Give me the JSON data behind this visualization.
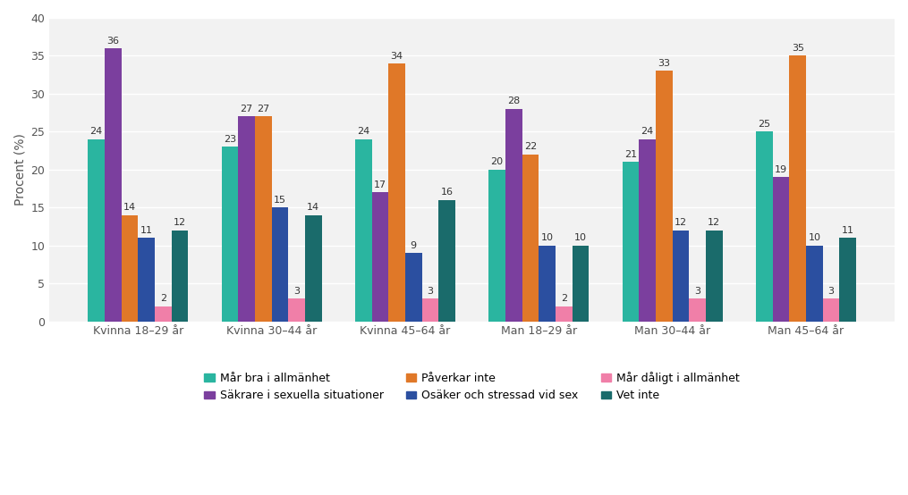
{
  "categories": [
    "Kvinna 18–29 år",
    "Kvinna 30–44 år",
    "Kvinna 45–64 år",
    "Man 18–29 år",
    "Man 30–44 år",
    "Man 45–64 år"
  ],
  "series": [
    {
      "label": "Mår bra i allmänhet",
      "color": "#2ab5a0",
      "values": [
        24,
        23,
        24,
        20,
        21,
        25
      ]
    },
    {
      "label": "Säkrare i sexuella situationer",
      "color": "#7b3f9e",
      "values": [
        36,
        27,
        17,
        28,
        24,
        19
      ]
    },
    {
      "label": "Påverkar inte",
      "color": "#e07828",
      "values": [
        14,
        27,
        34,
        22,
        33,
        35
      ]
    },
    {
      "label": "Osäker och stressad vid sex",
      "color": "#2b4fa0",
      "values": [
        11,
        15,
        9,
        10,
        12,
        10
      ]
    },
    {
      "label": "Mår dåligt i allmänhet",
      "color": "#f07fa8",
      "values": [
        2,
        3,
        3,
        2,
        3,
        3
      ]
    },
    {
      "label": "Vet inte",
      "color": "#1a6b6b",
      "values": [
        12,
        14,
        16,
        10,
        12,
        11
      ]
    }
  ],
  "legend_order": [
    0,
    1,
    2,
    3,
    4,
    5
  ],
  "ylabel": "Procent (%)",
  "ylim": [
    0,
    40
  ],
  "yticks": [
    0,
    5,
    10,
    15,
    20,
    25,
    30,
    35,
    40
  ],
  "bar_width": 0.125,
  "figsize": [
    10.15,
    5.54
  ],
  "dpi": 100,
  "background_color": "#ffffff",
  "plot_bg_color": "#f2f2f2",
  "grid_color": "#ffffff",
  "label_fontsize": 8,
  "legend_ncol": 3
}
